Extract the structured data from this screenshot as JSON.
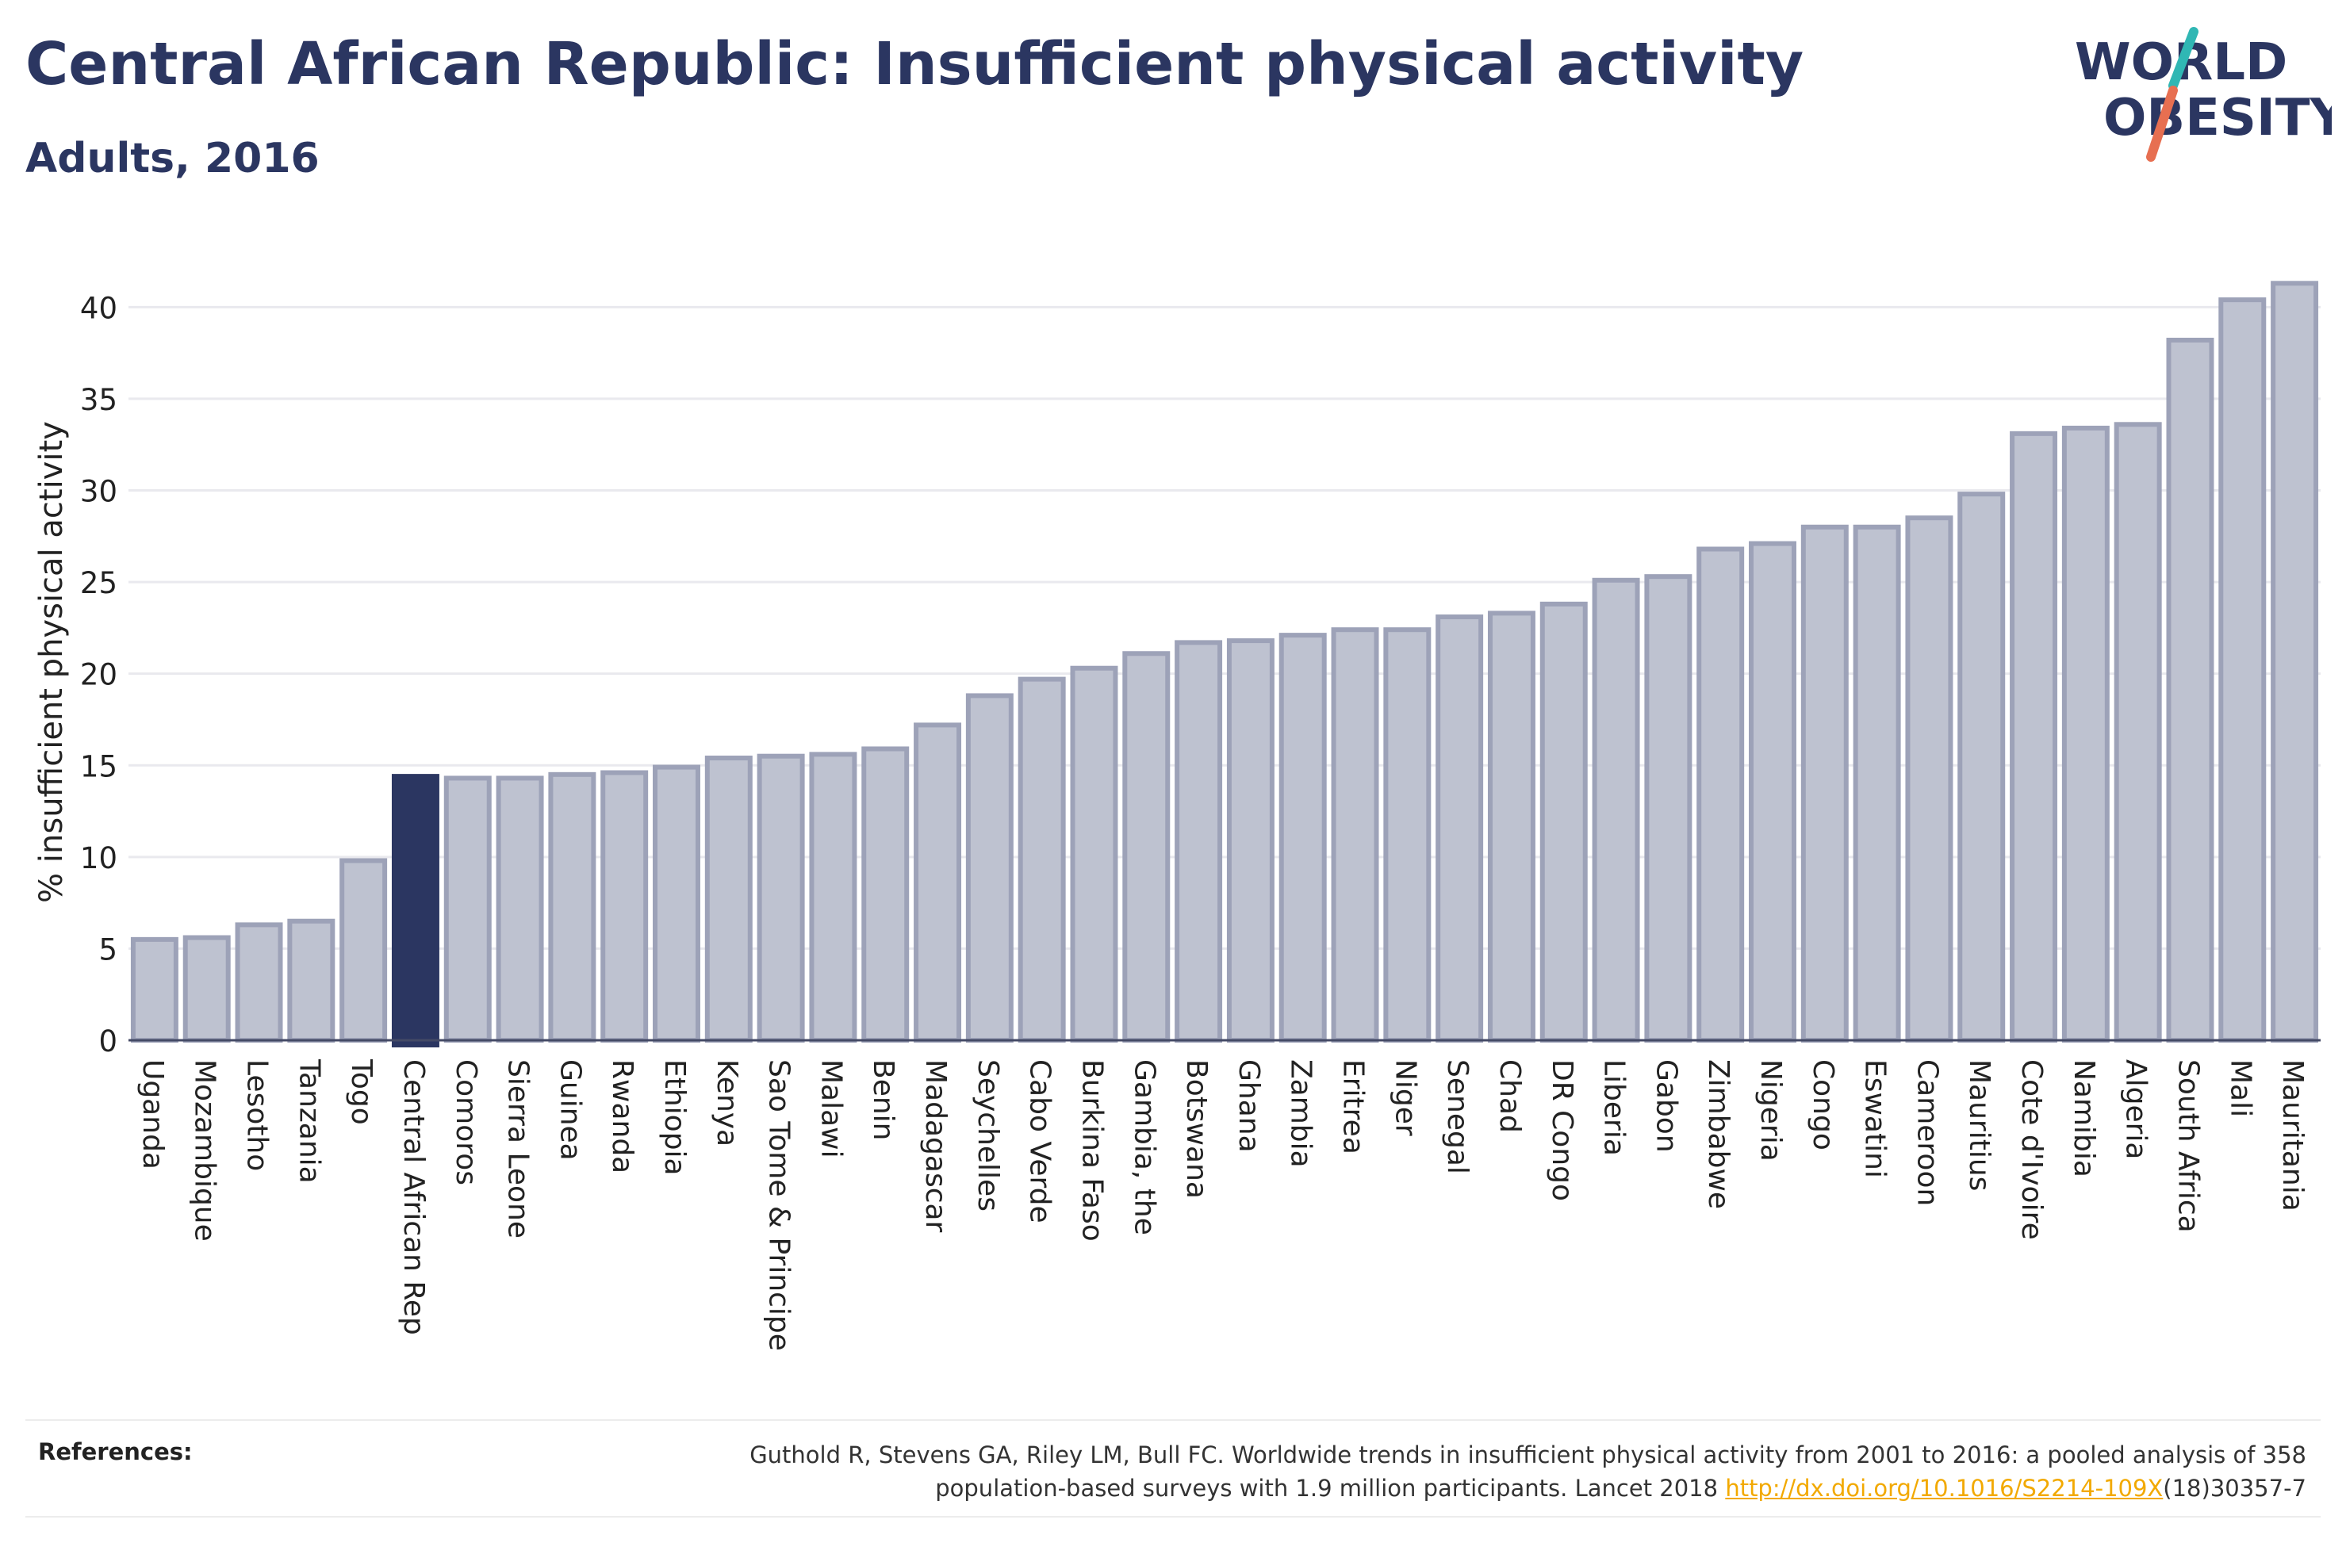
{
  "header": {
    "title": "Central African Republic: Insufficient physical activity",
    "subtitle": "Adults, 2016"
  },
  "logo": {
    "line1": "WORLD",
    "line2": "OBESITY",
    "colors": {
      "text": "#2b3661",
      "slash_teal": "#30b7b4",
      "slash_coral": "#e76f51"
    }
  },
  "chart_data": {
    "type": "bar",
    "ylabel": "% insufficient physical activity",
    "xlabel": "",
    "ylim": [
      0,
      43
    ],
    "yticks": [
      0,
      5,
      10,
      15,
      20,
      25,
      30,
      35,
      40
    ],
    "grid": true,
    "highlight": "Central African Rep",
    "colors": {
      "bar": "#bec2d0",
      "bar_edge": "#9da2b8",
      "highlight": "#2b3661",
      "grid": "#e9e9ee",
      "axis": "#444a66"
    },
    "categories": [
      "Uganda",
      "Mozambique",
      "Lesotho",
      "Tanzania",
      "Togo",
      "Central African Rep",
      "Comoros",
      "Sierra Leone",
      "Guinea",
      "Rwanda",
      "Ethiopia",
      "Kenya",
      "Sao Tome & Principe",
      "Malawi",
      "Benin",
      "Madagascar",
      "Seychelles",
      "Cabo Verde",
      "Burkina Faso",
      "Gambia, the",
      "Botswana",
      "Ghana",
      "Zambia",
      "Eritrea",
      "Niger",
      "Senegal",
      "Chad",
      "DR Congo",
      "Liberia",
      "Gabon",
      "Zimbabwe",
      "Nigeria",
      "Congo",
      "Eswatini",
      "Cameroon",
      "Mauritius",
      "Cote d'Ivoire",
      "Namibia",
      "Algeria",
      "South Africa",
      "Mali",
      "Mauritania"
    ],
    "values": [
      5.5,
      5.6,
      6.3,
      6.5,
      9.8,
      14.4,
      14.3,
      14.3,
      14.5,
      14.6,
      14.9,
      15.4,
      15.5,
      15.6,
      15.9,
      17.2,
      18.8,
      19.7,
      20.3,
      21.1,
      21.7,
      21.8,
      22.1,
      22.4,
      22.4,
      23.1,
      23.3,
      23.8,
      25.1,
      25.3,
      26.8,
      27.1,
      28.0,
      28.0,
      28.5,
      29.8,
      33.1,
      33.4,
      33.6,
      38.2,
      40.4,
      41.3
    ]
  },
  "references": {
    "label": "References:",
    "text_line1": "Guthold R, Stevens GA, Riley LM, Bull FC. Worldwide trends in insufficient physical activity from 2001 to 2016: a pooled analysis of 358",
    "text_line2_before": "population-based surveys with 1.9 million participants. Lancet 2018 ",
    "link": "http://dx.doi.org/10.1016/S2214-109X",
    "text_line2_after": "(18)30357-7"
  }
}
